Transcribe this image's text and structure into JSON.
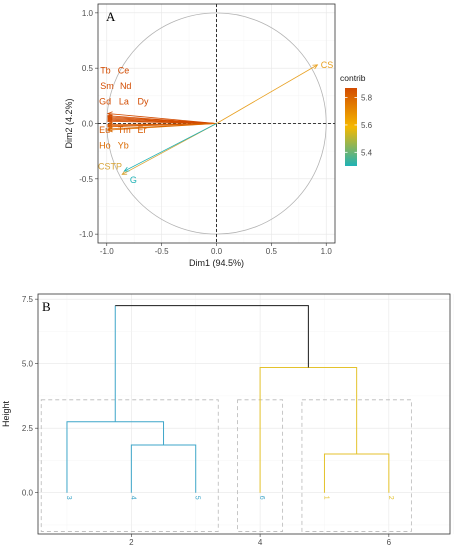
{
  "chart_data": [
    {
      "panel": "A",
      "type": "scatter",
      "subtype": "pca-variable-correlation-circle",
      "xlabel": "Dim1 (94.5%)",
      "ylabel": "Dim2 (4.2%)",
      "xlim": [
        -1.08,
        1.08
      ],
      "ylim": [
        -1.08,
        1.08
      ],
      "x_ticks": [
        -1.0,
        -0.5,
        0.0,
        0.5,
        1.0
      ],
      "y_ticks": [
        -1.0,
        -0.5,
        0.0,
        0.5,
        1.0
      ],
      "x_tick_labels": [
        "-1.0",
        "-0.5",
        "0.0",
        "0.5",
        "1.0"
      ],
      "y_tick_labels": [
        "-1.0",
        "-0.5",
        "0.0",
        "0.5",
        "1.0"
      ],
      "grid": true,
      "unit_circle": true,
      "colors": {
        "low": "#1fb2b5",
        "mid": "#f5b800",
        "high": "#d24b00",
        "circle": "#b3b3b3"
      },
      "variables": [
        {
          "name": "CS",
          "x": 0.92,
          "y": 0.53,
          "contrib": 5.65,
          "color": "#e8a020",
          "label_x": 0.95,
          "label_y": 0.53
        },
        {
          "name": "Tb",
          "x": -0.99,
          "y": 0.09,
          "contrib": 5.85,
          "color": "#d24b00",
          "label_x": -1.06,
          "label_y": 0.48
        },
        {
          "name": "Ce",
          "x": -0.99,
          "y": 0.07,
          "contrib": 5.85,
          "color": "#d24b00",
          "label_x": -0.9,
          "label_y": 0.48
        },
        {
          "name": "Sm",
          "x": -0.99,
          "y": 0.06,
          "contrib": 5.84,
          "color": "#d24b00",
          "label_x": -1.06,
          "label_y": 0.34
        },
        {
          "name": "Nd",
          "x": -0.99,
          "y": 0.05,
          "contrib": 5.84,
          "color": "#d24b00",
          "label_x": -0.88,
          "label_y": 0.34
        },
        {
          "name": "Gd",
          "x": -0.99,
          "y": 0.04,
          "contrib": 5.84,
          "color": "#d24b00",
          "label_x": -1.07,
          "label_y": 0.2
        },
        {
          "name": "La",
          "x": -0.99,
          "y": 0.03,
          "contrib": 5.84,
          "color": "#d24b00",
          "label_x": -0.89,
          "label_y": 0.2
        },
        {
          "name": "Dy",
          "x": -0.99,
          "y": 0.02,
          "contrib": 5.83,
          "color": "#d24b00",
          "label_x": -0.72,
          "label_y": 0.2
        },
        {
          "name": "Eu",
          "x": -0.99,
          "y": -0.01,
          "contrib": 5.82,
          "color": "#d75a00",
          "label_x": -1.07,
          "label_y": -0.06
        },
        {
          "name": "Tm",
          "x": -0.99,
          "y": -0.02,
          "contrib": 5.82,
          "color": "#d75a00",
          "label_x": -0.9,
          "label_y": -0.06
        },
        {
          "name": "Er",
          "x": -0.99,
          "y": -0.03,
          "contrib": 5.82,
          "color": "#d75a00",
          "label_x": -0.72,
          "label_y": -0.06
        },
        {
          "name": "Ho",
          "x": -0.99,
          "y": -0.05,
          "contrib": 5.8,
          "color": "#db6a00",
          "label_x": -1.07,
          "label_y": -0.2
        },
        {
          "name": "Yb",
          "x": -0.99,
          "y": -0.06,
          "contrib": 5.8,
          "color": "#db6a00",
          "label_x": -0.9,
          "label_y": -0.2
        },
        {
          "name": "CSTP",
          "x": -0.86,
          "y": -0.46,
          "contrib": 5.55,
          "color": "#d8a53a",
          "label_x": -1.08,
          "label_y": -0.39
        },
        {
          "name": "G",
          "x": -0.84,
          "y": -0.43,
          "contrib": 5.3,
          "color": "#1fb2b5",
          "label_x": -0.79,
          "label_y": -0.51
        }
      ],
      "legend": {
        "title": "contrib",
        "placement": "right",
        "ticks": [
          "5.8",
          "5.6",
          "5.4"
        ],
        "tick_values": [
          5.8,
          5.6,
          5.4
        ],
        "range": [
          5.3,
          5.87
        ]
      }
    },
    {
      "panel": "B",
      "type": "dendrogram",
      "ylabel": "Height",
      "xlabel": "",
      "xlim": [
        0.55,
        6.95
      ],
      "ylim": [
        -1.6,
        7.7
      ],
      "x_ticks": [
        2,
        4,
        6
      ],
      "x_tick_labels": [
        "2",
        "4",
        "6"
      ],
      "y_ticks": [
        0.0,
        2.5,
        5.0,
        7.5
      ],
      "y_tick_labels": [
        "0.0",
        "2.5",
        "5.0",
        "7.5"
      ],
      "grid": true,
      "colors": {
        "cluster1": "#3ea6c9",
        "cluster2": "#e4c22c",
        "root": "#1a1a1a",
        "box": "#b8b8b8"
      },
      "leaves": [
        {
          "label": "3",
          "position": 1
        },
        {
          "label": "4",
          "position": 2
        },
        {
          "label": "5",
          "position": 3
        },
        {
          "label": "6",
          "position": 4
        },
        {
          "label": "1",
          "position": 5
        },
        {
          "label": "2",
          "position": 6
        }
      ],
      "merges": [
        {
          "left_x": 2,
          "right_x": 3,
          "height": 1.85,
          "left_h": 0,
          "right_h": 0,
          "color": "#3ea6c9"
        },
        {
          "left_x": 1,
          "right_x": 2.5,
          "height": 2.75,
          "left_h": 0,
          "right_h": 1.85,
          "color": "#3ea6c9"
        },
        {
          "left_x": 1.75,
          "right_x": 1.75,
          "height": 7.25,
          "left_h": 2.75,
          "right_h": 2.75,
          "color": "#3ea6c9"
        },
        {
          "left_x": 5,
          "right_x": 6,
          "height": 1.5,
          "left_h": 0,
          "right_h": 0,
          "color": "#e4c22c"
        },
        {
          "left_x": 4,
          "right_x": 5.5,
          "height": 4.85,
          "left_h": 0,
          "right_h": 1.5,
          "color": "#e4c22c"
        },
        {
          "left_x": 1.75,
          "right_x": 4.75,
          "height": 7.25,
          "left_h": 7.25,
          "right_h": 4.85,
          "color": "#1a1a1a"
        }
      ],
      "cluster_boxes": [
        {
          "x_from": 0.6,
          "x_to": 3.35,
          "y_from": -1.5,
          "y_to": 3.6
        },
        {
          "x_from": 3.65,
          "x_to": 4.35,
          "y_from": -1.5,
          "y_to": 3.6
        },
        {
          "x_from": 4.65,
          "x_to": 6.35,
          "y_from": -1.5,
          "y_to": 3.6
        }
      ]
    }
  ],
  "panels": {
    "a_letter": "A",
    "b_letter": "B"
  }
}
